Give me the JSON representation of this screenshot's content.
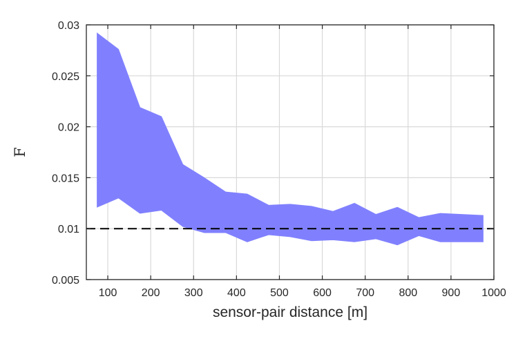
{
  "chart_data": {
    "type": "area",
    "title": "",
    "xlabel": "sensor-pair distance [m]",
    "ylabel": "F",
    "xlim": [
      50,
      1000
    ],
    "ylim": [
      0.005,
      0.03
    ],
    "xticks": [
      100,
      200,
      300,
      400,
      500,
      600,
      700,
      800,
      900,
      1000
    ],
    "yticks": [
      0.005,
      0.01,
      0.015,
      0.02,
      0.025,
      0.03
    ],
    "xtick_labels": [
      "100",
      "200",
      "300",
      "400",
      "500",
      "600",
      "700",
      "800",
      "900",
      "1000"
    ],
    "ytick_labels": [
      "0.005",
      "0.01",
      "0.015",
      "0.02",
      "0.025",
      "0.03"
    ],
    "grid": true,
    "band": {
      "x": [
        75,
        125,
        175,
        225,
        275,
        325,
        375,
        425,
        475,
        525,
        575,
        625,
        675,
        725,
        775,
        825,
        875,
        925,
        975
      ],
      "upper": [
        0.0292,
        0.0276,
        0.0219,
        0.021,
        0.0163,
        0.015,
        0.0136,
        0.0134,
        0.0123,
        0.0124,
        0.0122,
        0.0117,
        0.0125,
        0.0114,
        0.0121,
        0.0111,
        0.0115,
        0.0114,
        0.0113
      ],
      "lower": [
        0.0121,
        0.013,
        0.0115,
        0.0118,
        0.0102,
        0.0096,
        0.0096,
        0.0087,
        0.0094,
        0.0092,
        0.0088,
        0.0089,
        0.0087,
        0.009,
        0.0084,
        0.0093,
        0.0087,
        0.0087,
        0.0087
      ],
      "color": "#8080ff"
    },
    "reference_line": {
      "y": 0.01,
      "style": "dashed",
      "color": "#000000"
    }
  }
}
